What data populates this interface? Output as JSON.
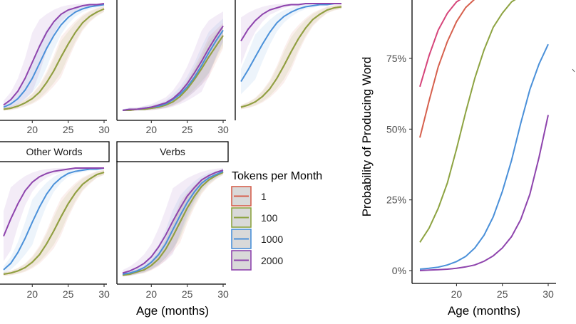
{
  "chart_data": [
    {
      "type": "line",
      "panel": "top-row",
      "xlabel": "",
      "ylabel": "",
      "xlim": [
        16,
        30
      ],
      "ylim": [
        0,
        1
      ],
      "x_ticks": [
        20,
        25,
        30
      ],
      "x_tick_labels": [
        "20",
        "25",
        "30"
      ],
      "grid": false,
      "facets": [
        {
          "title": "",
          "x": [
            16,
            17,
            18,
            19,
            20,
            21,
            22,
            23,
            24,
            25,
            26,
            27,
            28,
            29,
            30
          ],
          "series": [
            {
              "name": "1",
              "values": [
                0.01,
                0.02,
                0.04,
                0.07,
                0.11,
                0.17,
                0.26,
                0.37,
                0.5,
                0.62,
                0.73,
                0.82,
                0.88,
                0.92,
                0.95
              ]
            },
            {
              "name": "100",
              "values": [
                0.01,
                0.02,
                0.04,
                0.07,
                0.11,
                0.17,
                0.26,
                0.37,
                0.5,
                0.62,
                0.73,
                0.82,
                0.88,
                0.92,
                0.95
              ]
            },
            {
              "name": "1000",
              "values": [
                0.03,
                0.06,
                0.11,
                0.19,
                0.3,
                0.44,
                0.58,
                0.7,
                0.8,
                0.87,
                0.92,
                0.95,
                0.97,
                0.98,
                0.99
              ]
            },
            {
              "name": "2000",
              "values": [
                0.05,
                0.1,
                0.18,
                0.3,
                0.45,
                0.6,
                0.73,
                0.83,
                0.9,
                0.94,
                0.96,
                0.98,
                0.99,
                0.99,
                1.0
              ]
            }
          ]
        },
        {
          "title": "",
          "x": [
            16,
            17,
            18,
            19,
            20,
            21,
            22,
            23,
            24,
            25,
            26,
            27,
            28,
            29,
            30
          ],
          "series": [
            {
              "name": "1",
              "values": [
                0.0,
                0.0,
                0.01,
                0.01,
                0.02,
                0.03,
                0.05,
                0.08,
                0.13,
                0.2,
                0.29,
                0.39,
                0.5,
                0.6,
                0.7
              ]
            },
            {
              "name": "100",
              "values": [
                0.0,
                0.0,
                0.01,
                0.01,
                0.02,
                0.03,
                0.05,
                0.08,
                0.13,
                0.2,
                0.29,
                0.39,
                0.5,
                0.6,
                0.7
              ]
            },
            {
              "name": "1000",
              "values": [
                0.0,
                0.01,
                0.01,
                0.02,
                0.03,
                0.04,
                0.06,
                0.1,
                0.15,
                0.22,
                0.31,
                0.42,
                0.54,
                0.65,
                0.75
              ]
            },
            {
              "name": "2000",
              "values": [
                0.0,
                0.01,
                0.01,
                0.02,
                0.03,
                0.05,
                0.07,
                0.11,
                0.17,
                0.25,
                0.35,
                0.46,
                0.58,
                0.69,
                0.79
              ]
            }
          ]
        },
        {
          "title": "",
          "x": [
            16,
            17,
            18,
            19,
            20,
            21,
            22,
            23,
            24,
            25,
            26,
            27,
            28,
            29,
            30
          ],
          "series": [
            {
              "name": "1",
              "values": [
                0.03,
                0.05,
                0.08,
                0.13,
                0.2,
                0.3,
                0.42,
                0.55,
                0.67,
                0.77,
                0.85,
                0.9,
                0.94,
                0.96,
                0.97
              ]
            },
            {
              "name": "100",
              "values": [
                0.03,
                0.05,
                0.08,
                0.13,
                0.2,
                0.3,
                0.42,
                0.55,
                0.67,
                0.77,
                0.85,
                0.9,
                0.94,
                0.96,
                0.97
              ]
            },
            {
              "name": "1000",
              "values": [
                0.27,
                0.38,
                0.5,
                0.62,
                0.73,
                0.82,
                0.88,
                0.92,
                0.95,
                0.97,
                0.98,
                0.99,
                0.99,
                1.0,
                1.0
              ]
            },
            {
              "name": "2000",
              "values": [
                0.65,
                0.76,
                0.84,
                0.9,
                0.94,
                0.96,
                0.98,
                0.99,
                0.99,
                1.0,
                1.0,
                1.0,
                1.0,
                1.0,
                1.0
              ]
            }
          ]
        }
      ]
    },
    {
      "type": "line",
      "panel": "bottom-row",
      "xlabel": "Age (months)",
      "ylabel": "",
      "xlim": [
        16,
        30
      ],
      "ylim": [
        0,
        1
      ],
      "x_ticks": [
        20,
        25,
        30
      ],
      "x_tick_labels": [
        "20",
        "25",
        "30"
      ],
      "grid": false,
      "legend": {
        "title": "Tokens per Month",
        "placement": "right",
        "entries": [
          "1",
          "100",
          "1000",
          "2000"
        ]
      },
      "facets": [
        {
          "title": "Other Words",
          "x": [
            16,
            17,
            18,
            19,
            20,
            21,
            22,
            23,
            24,
            25,
            26,
            27,
            28,
            29,
            30
          ],
          "series": [
            {
              "name": "1",
              "values": [
                0.02,
                0.03,
                0.05,
                0.08,
                0.13,
                0.2,
                0.3,
                0.42,
                0.55,
                0.67,
                0.77,
                0.85,
                0.9,
                0.94,
                0.96
              ]
            },
            {
              "name": "100",
              "values": [
                0.02,
                0.03,
                0.05,
                0.08,
                0.13,
                0.2,
                0.3,
                0.42,
                0.55,
                0.67,
                0.77,
                0.85,
                0.9,
                0.94,
                0.96
              ]
            },
            {
              "name": "1000",
              "values": [
                0.06,
                0.12,
                0.22,
                0.35,
                0.5,
                0.64,
                0.76,
                0.85,
                0.91,
                0.95,
                0.97,
                0.98,
                0.99,
                0.99,
                1.0
              ]
            },
            {
              "name": "2000",
              "values": [
                0.37,
                0.53,
                0.67,
                0.79,
                0.87,
                0.92,
                0.95,
                0.97,
                0.98,
                0.99,
                1.0,
                1.0,
                1.0,
                1.0,
                1.0
              ]
            }
          ]
        },
        {
          "title": "Verbs",
          "x": [
            16,
            17,
            18,
            19,
            20,
            21,
            22,
            23,
            24,
            25,
            26,
            27,
            28,
            29,
            30
          ],
          "series": [
            {
              "name": "1",
              "values": [
                0.01,
                0.02,
                0.04,
                0.06,
                0.1,
                0.16,
                0.25,
                0.37,
                0.5,
                0.63,
                0.74,
                0.83,
                0.89,
                0.93,
                0.96
              ]
            },
            {
              "name": "100",
              "values": [
                0.01,
                0.02,
                0.04,
                0.06,
                0.1,
                0.16,
                0.25,
                0.37,
                0.5,
                0.63,
                0.74,
                0.83,
                0.89,
                0.93,
                0.96
              ]
            },
            {
              "name": "1000",
              "values": [
                0.02,
                0.03,
                0.05,
                0.08,
                0.13,
                0.2,
                0.3,
                0.43,
                0.56,
                0.68,
                0.78,
                0.86,
                0.91,
                0.94,
                0.97
              ]
            },
            {
              "name": "2000",
              "values": [
                0.03,
                0.05,
                0.08,
                0.12,
                0.18,
                0.27,
                0.38,
                0.51,
                0.63,
                0.74,
                0.82,
                0.89,
                0.93,
                0.96,
                0.98
              ]
            }
          ]
        }
      ]
    },
    {
      "type": "line",
      "panel": "right",
      "xlabel": "Age (months)",
      "ylabel": "Probability of Producing Word",
      "xlim": [
        16,
        30
      ],
      "ylim": [
        0,
        1
      ],
      "x_ticks": [
        20,
        25,
        30
      ],
      "x_tick_labels": [
        "20",
        "25",
        "30"
      ],
      "y_ticks": [
        0,
        0.25,
        0.5,
        0.75
      ],
      "y_tick_labels": [
        "0%",
        "25%",
        "50%",
        "75%"
      ],
      "grid": false,
      "x": [
        16,
        17,
        18,
        19,
        20,
        21,
        22,
        23,
        24,
        25,
        26,
        27,
        28,
        29,
        30
      ],
      "series": [
        {
          "name": "1",
          "color": "#d6604d",
          "values": [
            0.47,
            0.6,
            0.72,
            0.81,
            0.88,
            0.93,
            0.96,
            0.98,
            0.99,
            1.0,
            1.0,
            1.0,
            1.0,
            1.0,
            1.0
          ]
        },
        {
          "name": "100",
          "color": "#8da341",
          "values": [
            0.1,
            0.15,
            0.22,
            0.31,
            0.43,
            0.56,
            0.68,
            0.78,
            0.86,
            0.91,
            0.95,
            0.97,
            0.98,
            0.99,
            1.0
          ]
        },
        {
          "name": "1000",
          "color": "#4a90d9",
          "values": [
            0.005,
            0.008,
            0.012,
            0.02,
            0.032,
            0.05,
            0.08,
            0.125,
            0.19,
            0.28,
            0.39,
            0.52,
            0.64,
            0.73,
            0.8
          ]
        },
        {
          "name": "2000",
          "color": "#8e44ad",
          "values": [
            0.0,
            0.002,
            0.003,
            0.005,
            0.008,
            0.013,
            0.02,
            0.033,
            0.052,
            0.08,
            0.12,
            0.18,
            0.27,
            0.4,
            0.55
          ]
        },
        {
          "name": "",
          "color": "#d6457a",
          "values": [
            0.65,
            0.76,
            0.85,
            0.91,
            0.95,
            0.97,
            0.99,
            1.0,
            1.0,
            1.0,
            1.0,
            1.0,
            1.0,
            1.0,
            1.0
          ]
        }
      ]
    }
  ],
  "colors": {
    "1": "#d6604d",
    "100": "#8da341",
    "1000": "#4a90d9",
    "2000": "#8e44ad",
    "extra": "#d6457a"
  },
  "legend_swatch_fill": "#d9d9d9"
}
